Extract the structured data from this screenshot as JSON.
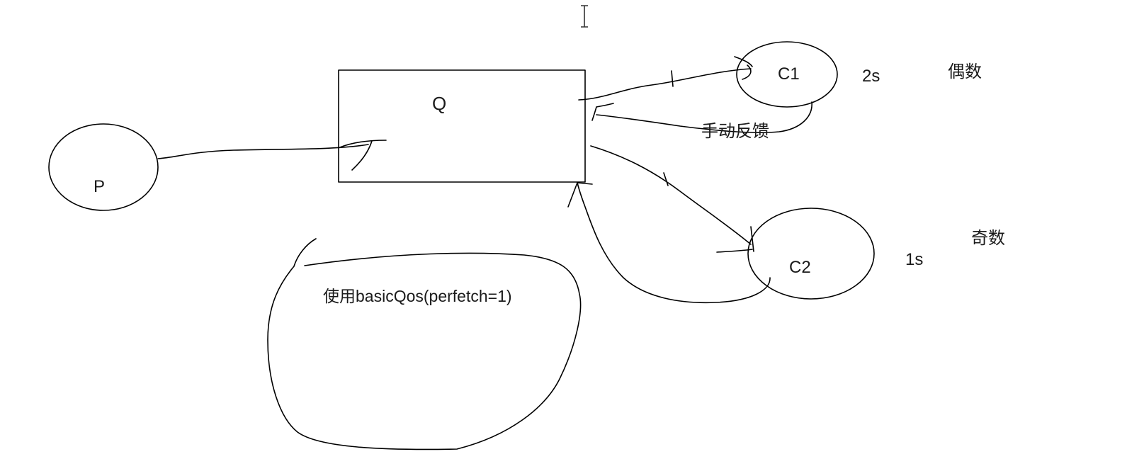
{
  "diagram": {
    "producer": {
      "label": "P"
    },
    "queue": {
      "label": "Q"
    },
    "consumer_1": {
      "label": "C1",
      "delay": "2s",
      "parity": "偶数"
    },
    "consumer_2": {
      "label": "C2",
      "delay": "1s",
      "parity": "奇数"
    },
    "ack_label": "手动反馈",
    "qos_note": "使用basicQos(perfetch=1)"
  }
}
